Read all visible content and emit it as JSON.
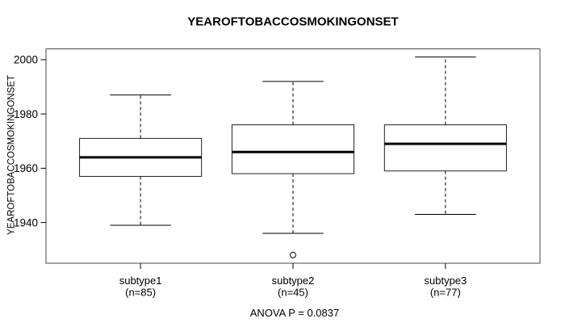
{
  "chart_data": {
    "type": "boxplot",
    "title": "YEAROFTOBACCOSMOKINGONSET",
    "ylabel": "YEAROFTOBACCOSMOKINGONSET",
    "xlabel": "",
    "ylim": [
      1925,
      2004
    ],
    "yticks": [
      1940,
      1960,
      1980,
      2000
    ],
    "grid": false,
    "legend": "none",
    "annotation": "ANOVA P = 0.0837",
    "colors": {
      "background": "#ffffff",
      "frame": "#4a4a4a",
      "box_border": "#222222",
      "median": "#000000",
      "whisker": "#000000",
      "text": "#000000"
    },
    "groups": [
      {
        "label": "subtype1",
        "n_label": "(n=85)",
        "whisker_low": 1939,
        "q1": 1957,
        "median": 1964,
        "q3": 1971,
        "whisker_high": 1987,
        "outliers": []
      },
      {
        "label": "subtype2",
        "n_label": "(n=45)",
        "whisker_low": 1936,
        "q1": 1958,
        "median": 1966,
        "q3": 1976,
        "whisker_high": 1992,
        "outliers": [
          1928
        ]
      },
      {
        "label": "subtype3",
        "n_label": "(n=77)",
        "whisker_low": 1943,
        "q1": 1959,
        "median": 1969,
        "q3": 1976,
        "whisker_high": 2001,
        "outliers": []
      }
    ]
  }
}
